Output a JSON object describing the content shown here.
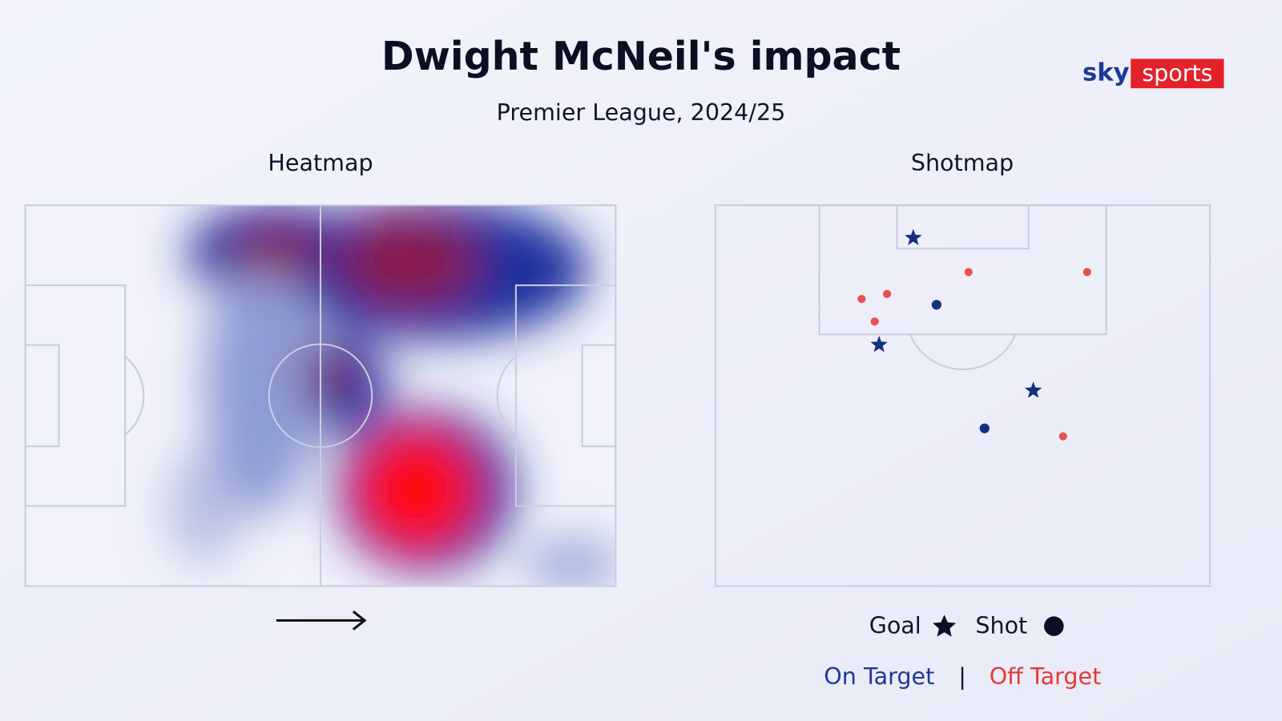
{
  "title": "Dwight McNeil's impact",
  "subtitle": "Premier League, 2024/25",
  "logo": {
    "sky": "sky",
    "sports": "sports"
  },
  "heatmap": {
    "title": "Heatmap"
  },
  "chart_data": {
    "type": "scatter",
    "title": "Shotmap",
    "xlim": [
      0,
      68
    ],
    "ylim": [
      0,
      52.4
    ],
    "series": [
      {
        "name": "Goal",
        "marker": "star",
        "color": "#12307e",
        "x": [
          27.2,
          22.5,
          43.7
        ],
        "y": [
          4.5,
          19.2,
          25.5
        ]
      },
      {
        "name": "Shot",
        "marker": "circle",
        "color": "#12307e",
        "x": [
          30.4,
          37.0
        ],
        "y": [
          13.7,
          30.7
        ]
      },
      {
        "marker": "circle",
        "color": "#e8504f",
        "x": [
          34.8,
          51.1,
          20.1,
          23.6,
          21.9,
          47.8
        ],
        "y": [
          9.2,
          9.2,
          12.9,
          12.2,
          16.0,
          31.8
        ]
      }
    ],
    "color_legend": [
      {
        "label": "On Target",
        "color": "#1f3a93"
      },
      {
        "label": "Off Target",
        "color": "#e53935"
      }
    ]
  }
}
